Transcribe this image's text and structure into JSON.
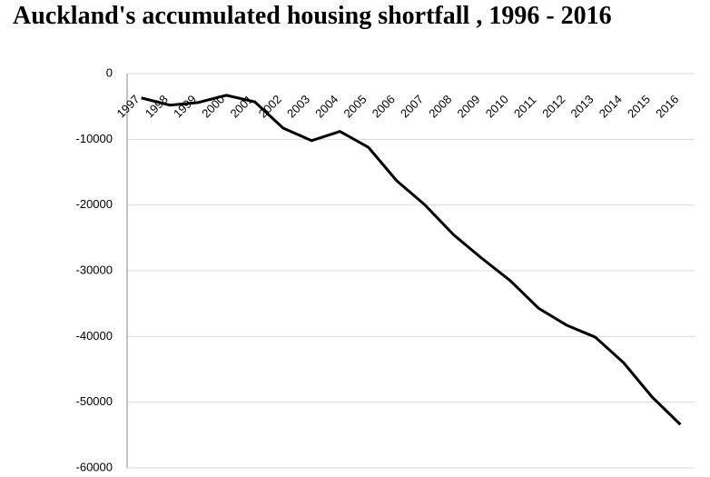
{
  "chart_data": {
    "type": "line",
    "title": "Auckland's accumulated housing shortfall , 1996 - 2016",
    "categories": [
      "1997",
      "1998",
      "1999",
      "2000",
      "2001",
      "2002",
      "2003",
      "2004",
      "2005",
      "2006",
      "2007",
      "2008",
      "2009",
      "2010",
      "2011",
      "2012",
      "2013",
      "2014",
      "2015",
      "2016"
    ],
    "values": [
      -3700,
      -4800,
      -4400,
      -3300,
      -4300,
      -8300,
      -10200,
      -8800,
      -11200,
      -16300,
      -20000,
      -24500,
      -28100,
      -31500,
      -35700,
      -38300,
      -40100,
      -44000,
      -49200,
      -53400
    ],
    "color": "#000000",
    "ylim": [
      -60000,
      0
    ],
    "yticks": [
      0,
      -10000,
      -20000,
      -30000,
      -40000,
      -50000,
      -60000
    ],
    "grid": true
  }
}
